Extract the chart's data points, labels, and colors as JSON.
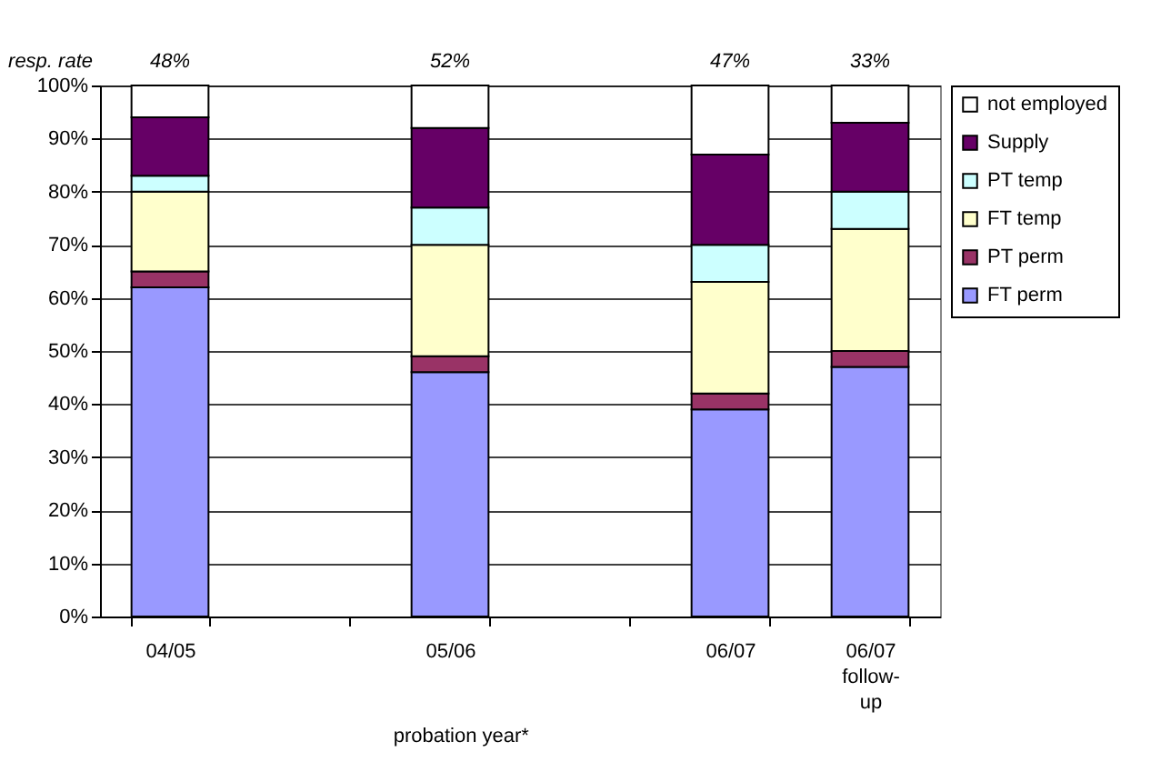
{
  "chart_data": {
    "type": "bar",
    "stacked": true,
    "categories": [
      "04/05",
      null,
      "05/06",
      null,
      "06/07",
      "06/07 follow-up"
    ],
    "series": [
      {
        "name": "FT perm",
        "color": "#9999ff",
        "values": [
          0.62,
          null,
          0.46,
          null,
          0.39,
          0.47
        ]
      },
      {
        "name": "PT perm",
        "color": "#993366",
        "values": [
          0.03,
          null,
          0.03,
          null,
          0.03,
          0.03
        ]
      },
      {
        "name": "FT temp",
        "color": "#ffffcc",
        "values": [
          0.15,
          null,
          0.21,
          null,
          0.21,
          0.23
        ]
      },
      {
        "name": "PT temp",
        "color": "#ccffff",
        "values": [
          0.03,
          null,
          0.07,
          null,
          0.07,
          0.07
        ]
      },
      {
        "name": "Supply",
        "color": "#660066",
        "values": [
          0.11,
          null,
          0.15,
          null,
          0.17,
          0.13
        ]
      },
      {
        "name": "not employed",
        "color": "#ffffff",
        "values": [
          0.06,
          null,
          0.08,
          null,
          0.13,
          0.07
        ]
      }
    ],
    "ylim": [
      0,
      1
    ],
    "yticks": [
      {
        "value": 0,
        "label": "0%"
      },
      {
        "value": 0.1,
        "label": "10%"
      },
      {
        "value": 0.2,
        "label": "20%"
      },
      {
        "value": 0.3,
        "label": "30%"
      },
      {
        "value": 0.4,
        "label": "40%"
      },
      {
        "value": 0.5,
        "label": "50%"
      },
      {
        "value": 0.6,
        "label": "60%"
      },
      {
        "value": 0.7,
        "label": "70%"
      },
      {
        "value": 0.8,
        "label": "80%"
      },
      {
        "value": 0.9,
        "label": "90%"
      },
      {
        "value": 1,
        "label": "100%"
      }
    ],
    "grid": "y",
    "legend": "right",
    "annotations": [
      "resp. rate",
      "48%",
      "52%",
      "47%",
      "33%",
      "probation year*"
    ]
  }
}
